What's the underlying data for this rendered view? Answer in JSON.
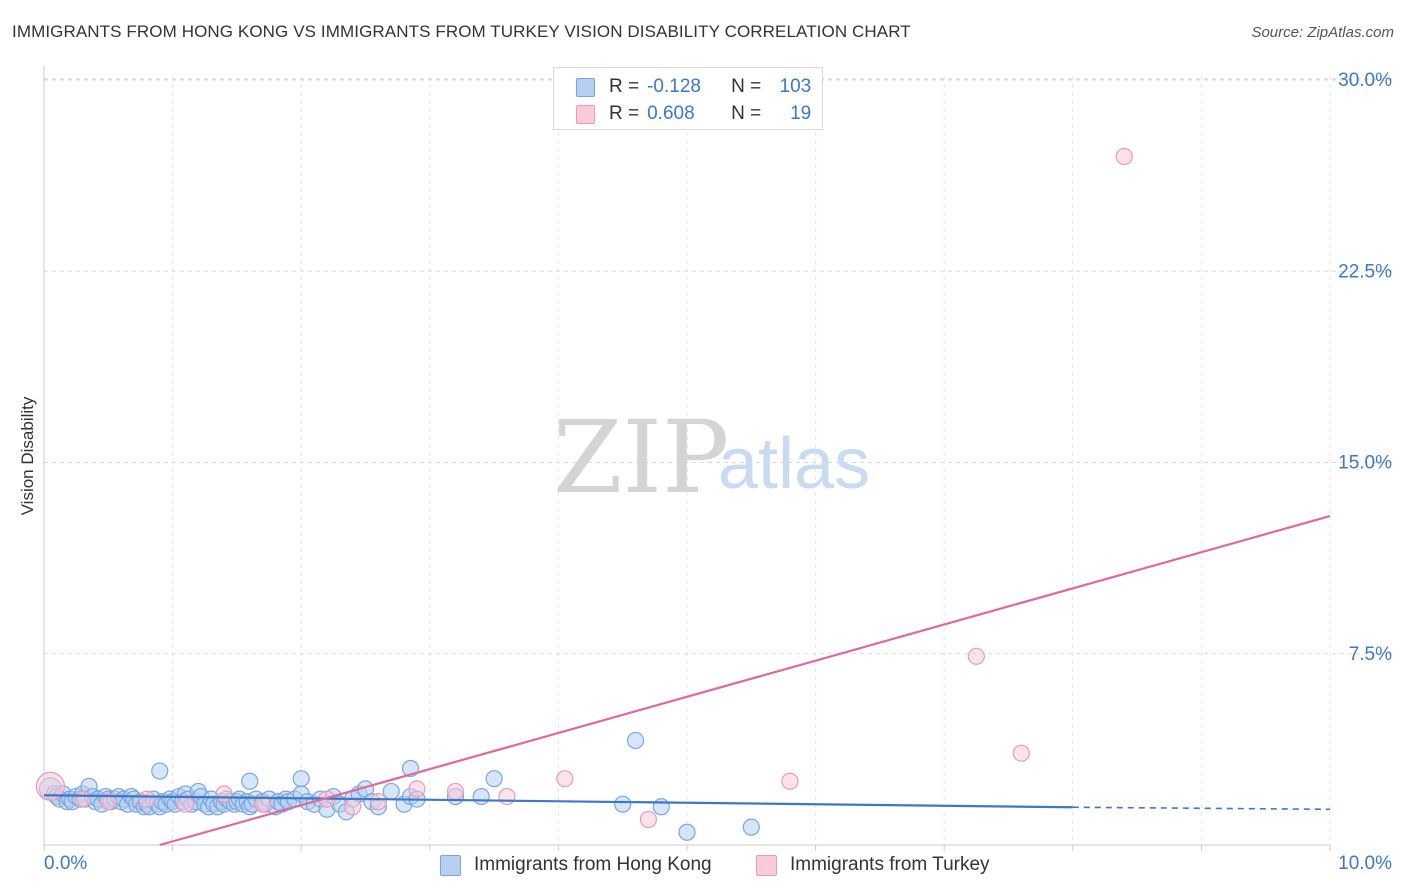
{
  "header": {
    "title": "IMMIGRANTS FROM HONG KONG VS IMMIGRANTS FROM TURKEY VISION DISABILITY CORRELATION CHART",
    "source": "Source: ZipAtlas.com"
  },
  "watermark": {
    "zip": "ZIP",
    "atlas": "atlas"
  },
  "legend": {
    "rows": [
      {
        "r_label": "R =",
        "r_value": "-0.128",
        "n_label": "N =",
        "n_value": "103",
        "color": "#7aa6e0"
      },
      {
        "r_label": "R =",
        "r_value": "0.608",
        "n_label": "N =",
        "n_value": "19",
        "color": "#ee9ab4"
      }
    ]
  },
  "chart_data": {
    "type": "scatter",
    "title": "IMMIGRANTS FROM HONG KONG VS IMMIGRANTS FROM TURKEY VISION DISABILITY CORRELATION CHART",
    "xlabel": "",
    "ylabel": "Vision Disability",
    "xlim": [
      0,
      10
    ],
    "ylim": [
      0,
      31
    ],
    "x_tick_labels": [
      "0.0%",
      "10.0%"
    ],
    "y_ticks": [
      7.5,
      15.0,
      22.5,
      30.0
    ],
    "y_tick_labels": [
      "7.5%",
      "15.0%",
      "22.5%",
      "30.0%"
    ],
    "grid": true,
    "legend_position": "bottom",
    "series": [
      {
        "name": "Immigrants from Hong Kong",
        "color": "#7aa6e0",
        "fill": "#b7d0f2",
        "points": [
          [
            0.05,
            2.2
          ],
          [
            0.08,
            2.0
          ],
          [
            0.1,
            1.9
          ],
          [
            0.12,
            1.8
          ],
          [
            0.15,
            2.0
          ],
          [
            0.18,
            1.7
          ],
          [
            0.2,
            1.8
          ],
          [
            0.22,
            1.7
          ],
          [
            0.25,
            1.9
          ],
          [
            0.28,
            1.8
          ],
          [
            0.3,
            2.0
          ],
          [
            0.32,
            1.8
          ],
          [
            0.35,
            2.3
          ],
          [
            0.38,
            1.9
          ],
          [
            0.4,
            1.7
          ],
          [
            0.42,
            1.8
          ],
          [
            0.45,
            1.6
          ],
          [
            0.48,
            1.9
          ],
          [
            0.5,
            1.8
          ],
          [
            0.52,
            1.7
          ],
          [
            0.55,
            1.8
          ],
          [
            0.58,
            1.9
          ],
          [
            0.6,
            1.7
          ],
          [
            0.62,
            1.8
          ],
          [
            0.65,
            1.6
          ],
          [
            0.68,
            1.9
          ],
          [
            0.7,
            1.8
          ],
          [
            0.72,
            1.6
          ],
          [
            0.75,
            1.7
          ],
          [
            0.78,
            1.5
          ],
          [
            0.8,
            1.6
          ],
          [
            0.82,
            1.5
          ],
          [
            0.85,
            1.8
          ],
          [
            0.88,
            1.6
          ],
          [
            0.9,
            1.5
          ],
          [
            0.92,
            1.7
          ],
          [
            0.95,
            1.6
          ],
          [
            0.98,
            1.8
          ],
          [
            1.0,
            1.7
          ],
          [
            1.02,
            1.6
          ],
          [
            1.05,
            1.9
          ],
          [
            1.08,
            1.7
          ],
          [
            1.1,
            2.0
          ],
          [
            1.12,
            1.8
          ],
          [
            1.15,
            1.6
          ],
          [
            1.18,
            1.7
          ],
          [
            1.2,
            2.1
          ],
          [
            1.22,
            1.9
          ],
          [
            1.25,
            1.6
          ],
          [
            1.28,
            1.5
          ],
          [
            1.3,
            1.8
          ],
          [
            1.32,
            1.6
          ],
          [
            1.35,
            1.5
          ],
          [
            1.38,
            1.7
          ],
          [
            1.4,
            1.6
          ],
          [
            1.42,
            1.8
          ],
          [
            1.45,
            1.7
          ],
          [
            1.48,
            1.6
          ],
          [
            1.5,
            1.7
          ],
          [
            1.52,
            1.8
          ],
          [
            1.55,
            1.6
          ],
          [
            1.58,
            1.7
          ],
          [
            1.6,
            1.5
          ],
          [
            1.62,
            1.6
          ],
          [
            1.65,
            1.8
          ],
          [
            1.7,
            1.7
          ],
          [
            1.72,
            1.6
          ],
          [
            1.75,
            1.8
          ],
          [
            1.8,
            1.5
          ],
          [
            1.82,
            1.7
          ],
          [
            1.85,
            1.6
          ],
          [
            1.88,
            1.8
          ],
          [
            1.9,
            1.7
          ],
          [
            1.95,
            1.8
          ],
          [
            2.0,
            2.0
          ],
          [
            2.05,
            1.7
          ],
          [
            2.1,
            1.6
          ],
          [
            2.15,
            1.8
          ],
          [
            2.2,
            1.4
          ],
          [
            2.25,
            1.9
          ],
          [
            2.3,
            1.6
          ],
          [
            2.35,
            1.3
          ],
          [
            2.4,
            1.8
          ],
          [
            2.45,
            2.0
          ],
          [
            2.5,
            2.2
          ],
          [
            2.55,
            1.7
          ],
          [
            2.6,
            1.5
          ],
          [
            2.7,
            2.1
          ],
          [
            2.8,
            1.6
          ],
          [
            2.85,
            1.9
          ],
          [
            2.9,
            1.8
          ],
          [
            3.2,
            1.9
          ],
          [
            3.4,
            1.9
          ],
          [
            4.5,
            1.6
          ],
          [
            4.6,
            4.1
          ],
          [
            4.8,
            1.5
          ],
          [
            5.0,
            0.5
          ],
          [
            5.5,
            0.7
          ],
          [
            0.9,
            2.9
          ],
          [
            1.6,
            2.5
          ],
          [
            2.0,
            2.6
          ],
          [
            2.85,
            3.0
          ],
          [
            3.5,
            2.6
          ]
        ]
      },
      {
        "name": "Immigrants from Turkey",
        "color": "#ee9ab4",
        "fill": "#f9cad8",
        "points": [
          [
            0.05,
            2.3
          ],
          [
            0.3,
            1.8
          ],
          [
            0.8,
            1.8
          ],
          [
            1.4,
            2.0
          ],
          [
            1.7,
            1.6
          ],
          [
            2.2,
            1.8
          ],
          [
            2.6,
            1.7
          ],
          [
            2.9,
            2.2
          ],
          [
            3.2,
            2.1
          ],
          [
            3.6,
            1.9
          ],
          [
            4.05,
            2.6
          ],
          [
            4.7,
            1.0
          ],
          [
            5.8,
            2.5
          ],
          [
            7.6,
            3.6
          ],
          [
            7.25,
            7.4
          ],
          [
            8.4,
            27.0
          ],
          [
            0.5,
            1.7
          ],
          [
            1.1,
            1.6
          ],
          [
            2.4,
            1.5
          ]
        ]
      }
    ],
    "trendlines": [
      {
        "series": "Immigrants from Hong Kong",
        "from": [
          0,
          1.95
        ],
        "to": [
          8.0,
          1.48
        ],
        "dashed_to": [
          10.0,
          1.4
        ],
        "color": "#3a78c8"
      },
      {
        "series": "Immigrants from Turkey",
        "from": [
          0.9,
          0
        ],
        "to": [
          10.0,
          12.9
        ],
        "color": "#e0689a"
      }
    ]
  }
}
